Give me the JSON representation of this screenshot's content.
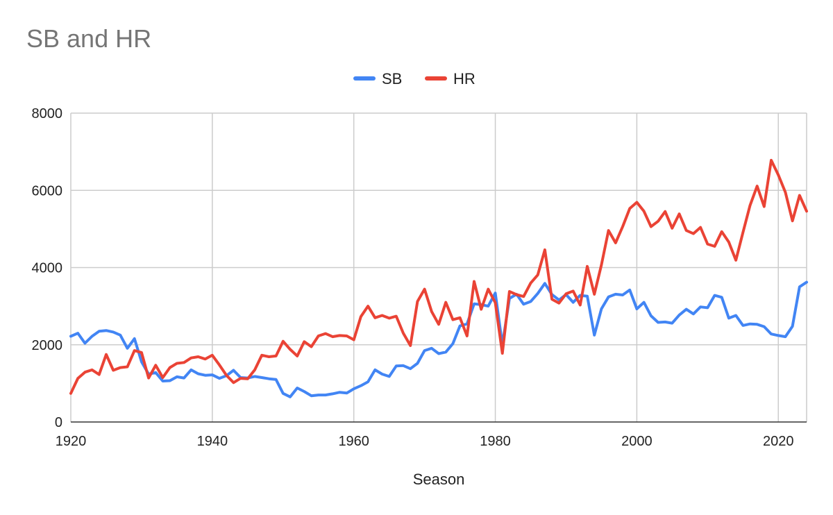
{
  "chart_data": {
    "type": "line",
    "title": "SB and HR",
    "xlabel": "Season",
    "ylabel": "",
    "xlim": [
      1920,
      2024
    ],
    "ylim": [
      0,
      8000
    ],
    "xticks": [
      "1920",
      "1940",
      "1960",
      "1980",
      "2000",
      "2020"
    ],
    "yticks": [
      "0",
      "2000",
      "4000",
      "6000",
      "8000"
    ],
    "grid": true,
    "legend_position": "top",
    "x": [
      1920,
      1921,
      1922,
      1923,
      1924,
      1925,
      1926,
      1927,
      1928,
      1929,
      1930,
      1931,
      1932,
      1933,
      1934,
      1935,
      1936,
      1937,
      1938,
      1939,
      1940,
      1941,
      1942,
      1943,
      1944,
      1945,
      1946,
      1947,
      1948,
      1949,
      1950,
      1951,
      1952,
      1953,
      1954,
      1955,
      1956,
      1957,
      1958,
      1959,
      1960,
      1961,
      1962,
      1963,
      1964,
      1965,
      1966,
      1967,
      1968,
      1969,
      1970,
      1971,
      1972,
      1973,
      1974,
      1975,
      1976,
      1977,
      1978,
      1979,
      1980,
      1981,
      1982,
      1983,
      1984,
      1985,
      1986,
      1987,
      1988,
      1989,
      1990,
      1991,
      1992,
      1993,
      1994,
      1995,
      1996,
      1997,
      1998,
      1999,
      2000,
      2001,
      2002,
      2003,
      2004,
      2005,
      2006,
      2007,
      2008,
      2009,
      2010,
      2011,
      2012,
      2013,
      2014,
      2015,
      2016,
      2017,
      2018,
      2019,
      2020,
      2021,
      2022,
      2023,
      2024
    ],
    "series": [
      {
        "name": "SB",
        "color": "#4285f4",
        "values": [
          2220,
          2300,
          2040,
          2220,
          2350,
          2370,
          2330,
          2250,
          1910,
          2160,
          1560,
          1240,
          1280,
          1060,
          1070,
          1170,
          1140,
          1350,
          1250,
          1210,
          1220,
          1130,
          1200,
          1340,
          1150,
          1140,
          1180,
          1150,
          1120,
          1100,
          740,
          650,
          880,
          790,
          680,
          700,
          700,
          730,
          770,
          750,
          860,
          940,
          1040,
          1350,
          1240,
          1180,
          1450,
          1460,
          1380,
          1520,
          1850,
          1910,
          1770,
          1810,
          2030,
          2490,
          2540,
          3060,
          3040,
          3000,
          3340,
          2000,
          3200,
          3310,
          3050,
          3120,
          3330,
          3590,
          3300,
          3160,
          3300,
          3100,
          3280,
          3260,
          2250,
          2930,
          3240,
          3310,
          3290,
          3420,
          2930,
          3100,
          2750,
          2580,
          2590,
          2560,
          2770,
          2920,
          2800,
          2980,
          2960,
          3280,
          3230,
          2690,
          2760,
          2500,
          2540,
          2530,
          2470,
          2280,
          2240,
          2210,
          2480,
          3500,
          3620
        ]
      },
      {
        "name": "HR",
        "color": "#ea4335",
        "values": [
          740,
          1130,
          1290,
          1350,
          1230,
          1750,
          1340,
          1410,
          1430,
          1850,
          1800,
          1140,
          1470,
          1150,
          1410,
          1520,
          1540,
          1660,
          1690,
          1630,
          1730,
          1480,
          1210,
          1020,
          1130,
          1120,
          1350,
          1730,
          1690,
          1710,
          2090,
          1880,
          1710,
          2080,
          1950,
          2230,
          2290,
          2210,
          2240,
          2230,
          2130,
          2730,
          3000,
          2700,
          2760,
          2690,
          2740,
          2300,
          1980,
          3120,
          3440,
          2860,
          2530,
          3100,
          2650,
          2700,
          2230,
          3640,
          2920,
          3440,
          3090,
          1780,
          3380,
          3300,
          3250,
          3600,
          3810,
          4460,
          3180,
          3080,
          3320,
          3390,
          3030,
          4030,
          3310,
          4070,
          4960,
          4640,
          5060,
          5530,
          5690,
          5460,
          5060,
          5200,
          5450,
          5020,
          5390,
          4960,
          4880,
          5040,
          4610,
          4550,
          4930,
          4660,
          4190,
          4910,
          5610,
          6110,
          5580,
          6780,
          6400,
          5950,
          5210,
          5870,
          5460
        ]
      }
    ]
  }
}
